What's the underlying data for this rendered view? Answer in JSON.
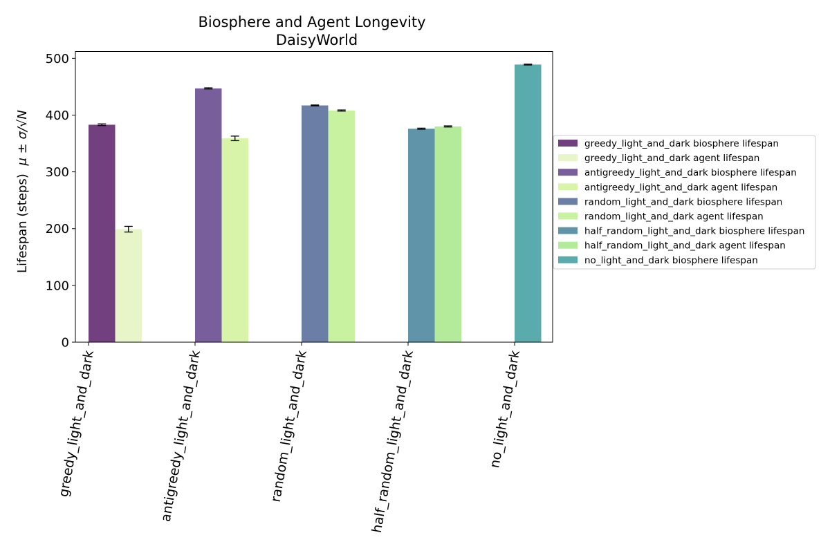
{
  "chart_data": {
    "type": "bar",
    "title": "Biosphere and Agent Longevity",
    "subtitle": "DaisyWorld",
    "ylabel": "Lifespan (steps)",
    "ylabel_formula": "μ ± σ/√N",
    "xlabel": "",
    "ylim": [
      0,
      512
    ],
    "yticks": [
      0,
      100,
      200,
      300,
      400,
      500
    ],
    "grid": false,
    "legend_position": "right",
    "categories": [
      "greedy_light_and_dark",
      "antigreedy_light_and_dark",
      "random_light_and_dark",
      "half_random_light_and_dark",
      "no_light_and_dark"
    ],
    "series": [
      {
        "name": "greedy_light_and_dark biosphere lifespan",
        "category": 0,
        "slot": 0,
        "value": 383,
        "error": 1.5,
        "color": "#73407f"
      },
      {
        "name": "greedy_light_and_dark agent lifespan",
        "category": 0,
        "slot": 1,
        "value": 199,
        "error": 5,
        "color": "#e8f5c8"
      },
      {
        "name": "antigreedy_light_and_dark biosphere lifespan",
        "category": 1,
        "slot": 0,
        "value": 447,
        "error": 1,
        "color": "#785f9c"
      },
      {
        "name": "antigreedy_light_and_dark agent lifespan",
        "category": 1,
        "slot": 1,
        "value": 359,
        "error": 4,
        "color": "#d8f4a8"
      },
      {
        "name": "random_light_and_dark biosphere lifespan",
        "category": 2,
        "slot": 0,
        "value": 417,
        "error": 0.8,
        "color": "#6a7ea6"
      },
      {
        "name": "random_light_and_dark agent lifespan",
        "category": 2,
        "slot": 1,
        "value": 408,
        "error": 1,
        "color": "#c8f2a0"
      },
      {
        "name": "half_random_light_and_dark biosphere lifespan",
        "category": 3,
        "slot": 0,
        "value": 376,
        "error": 1,
        "color": "#6095a9"
      },
      {
        "name": "half_random_light_and_dark agent lifespan",
        "category": 3,
        "slot": 1,
        "value": 380,
        "error": 1,
        "color": "#b4eb9a"
      },
      {
        "name": "no_light_and_dark biosphere lifespan",
        "category": 4,
        "slot": 0,
        "value": 489,
        "error": 0.8,
        "color": "#5aabab"
      }
    ]
  }
}
